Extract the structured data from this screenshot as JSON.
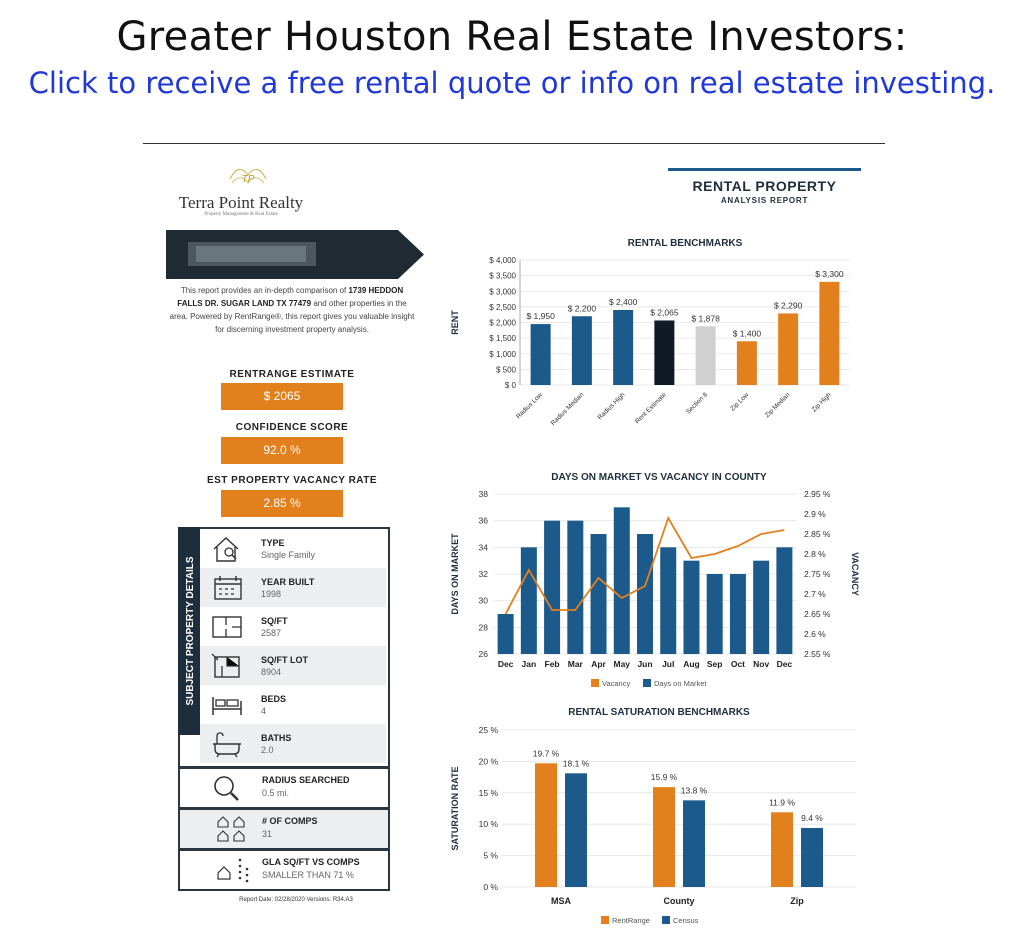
{
  "headline": "Greater Houston Real Estate Investors:",
  "cta": "Click to receive a free rental quote or info on real estate investing.",
  "brand": {
    "monogram": "TP",
    "name": "Terra Point Realty",
    "tagline": "Property Management & Real Estate"
  },
  "intro": {
    "pre": "This report provides an in-depth comparison of ",
    "address": "1739 HEDDON FALLS DR. SUGAR LAND TX 77479",
    "post": " and other properties in the area. Powered by RentRange®, this report gives you valuable insight for discerning investment property analysis."
  },
  "stats": [
    {
      "label": "RENTRANGE ESTIMATE",
      "value": "$ 2065"
    },
    {
      "label": "CONFIDENCE SCORE",
      "value": "92.0 %"
    },
    {
      "label": "EST PROPERTY VACANCY RATE",
      "value": "2.85 %"
    }
  ],
  "details_title": "SUBJECT PROPERTY DETAILS",
  "details": [
    {
      "label": "TYPE",
      "value": "Single Family",
      "icon": "house-search-icon"
    },
    {
      "label": "YEAR BUILT",
      "value": "1998",
      "icon": "calendar-icon"
    },
    {
      "label": "SQ/FT",
      "value": "2587",
      "icon": "floorplan-icon"
    },
    {
      "label": "SQ/FT LOT",
      "value": "8904",
      "icon": "lot-plan-icon"
    },
    {
      "label": "BEDS",
      "value": "4",
      "icon": "bed-icon"
    },
    {
      "label": "BATHS",
      "value": "2.0",
      "icon": "bathtub-icon"
    }
  ],
  "extras": [
    {
      "label": "RADIUS SEARCHED",
      "value": "0.5 mi.",
      "icon": "magnifier-icon"
    },
    {
      "label": "# OF COMPS",
      "value": "31",
      "icon": "houses-icon"
    },
    {
      "label": "GLA SQ/FT VS COMPS",
      "value": "SMALLER THAN 71 %",
      "icon": "house-compare-icon"
    }
  ],
  "report_date": "Report Date: 02/28/2020 Versions: R34.A3",
  "report_title": "RENTAL PROPERTY",
  "report_subtitle": "ANALYSIS REPORT",
  "colors": {
    "orange": "#e2801e",
    "blue": "#1d5a8c",
    "navy": "#0f1a26",
    "gray": "#d0d0d0"
  },
  "chart_data": [
    {
      "type": "bar",
      "title": "RENTAL BENCHMARKS",
      "ylabel": "RENT",
      "ylim": [
        0,
        4000
      ],
      "yticks": [
        "$ 0",
        "$ 500",
        "$ 1,000",
        "$ 1,500",
        "$ 2,000",
        "$ 2,500",
        "$ 3,000",
        "$ 3,500",
        "$ 4,000"
      ],
      "categories": [
        "Radius Low",
        "Radius Median",
        "Radius High",
        "Rent Estimate",
        "Section 8",
        "Zip Low",
        "Zip Median",
        "Zip High"
      ],
      "values": [
        1950,
        2200,
        2400,
        2065,
        1878,
        1400,
        2290,
        3300
      ],
      "value_labels": [
        "$ 1,950",
        "$ 2,200",
        "$ 2,400",
        "$ 2,065",
        "$ 1,878",
        "$ 1,400",
        "$ 2,290",
        "$ 3,300"
      ],
      "bar_colors": [
        "#1d5a8c",
        "#1d5a8c",
        "#1d5a8c",
        "#0f1a26",
        "#d0d0d0",
        "#e2801e",
        "#e2801e",
        "#e2801e"
      ]
    },
    {
      "type": "bar+line",
      "title": "DAYS ON MARKET VS VACANCY IN COUNTY",
      "ylabel": "DAYS ON MARKET",
      "y2label": "VACANCY",
      "ylim": [
        26,
        38
      ],
      "yticks": [
        "26",
        "28",
        "30",
        "32",
        "34",
        "36",
        "38"
      ],
      "y2lim": [
        2.55,
        2.95
      ],
      "y2ticks": [
        "2.55 %",
        "2.6 %",
        "2.65 %",
        "2.7 %",
        "2.75 %",
        "2.8 %",
        "2.85 %",
        "2.9 %",
        "2.95 %"
      ],
      "categories": [
        "Dec",
        "Jan",
        "Feb",
        "Mar",
        "Apr",
        "May",
        "Jun",
        "Jul",
        "Aug",
        "Sep",
        "Oct",
        "Nov",
        "Dec"
      ],
      "series": [
        {
          "name": "Days on Market",
          "type": "bar",
          "values": [
            29,
            34,
            36,
            36,
            35,
            37,
            35,
            34,
            33,
            32,
            32,
            33,
            34
          ]
        },
        {
          "name": "Vacancy",
          "type": "line",
          "values": [
            2.65,
            2.76,
            2.66,
            2.66,
            2.74,
            2.69,
            2.72,
            2.89,
            2.79,
            2.8,
            2.82,
            2.85,
            2.86
          ]
        }
      ],
      "legend": [
        "Vacancy",
        "Days on Market"
      ]
    },
    {
      "type": "bar",
      "title": "RENTAL SATURATION BENCHMARKS",
      "ylabel": "SATURATION RATE",
      "ylim": [
        0,
        25
      ],
      "yticks": [
        "0 %",
        "5 %",
        "10 %",
        "15 %",
        "20 %",
        "25 %"
      ],
      "categories": [
        "MSA",
        "County",
        "Zip"
      ],
      "series": [
        {
          "name": "RentRange",
          "values": [
            19.7,
            15.9,
            11.9
          ],
          "labels": [
            "19.7 %",
            "15.9 %",
            "11.9 %"
          ]
        },
        {
          "name": "Census",
          "values": [
            18.1,
            13.8,
            9.4
          ],
          "labels": [
            "18.1 %",
            "13.8 %",
            "9.4 %"
          ]
        }
      ],
      "legend": [
        "RentRange",
        "Census"
      ]
    }
  ]
}
